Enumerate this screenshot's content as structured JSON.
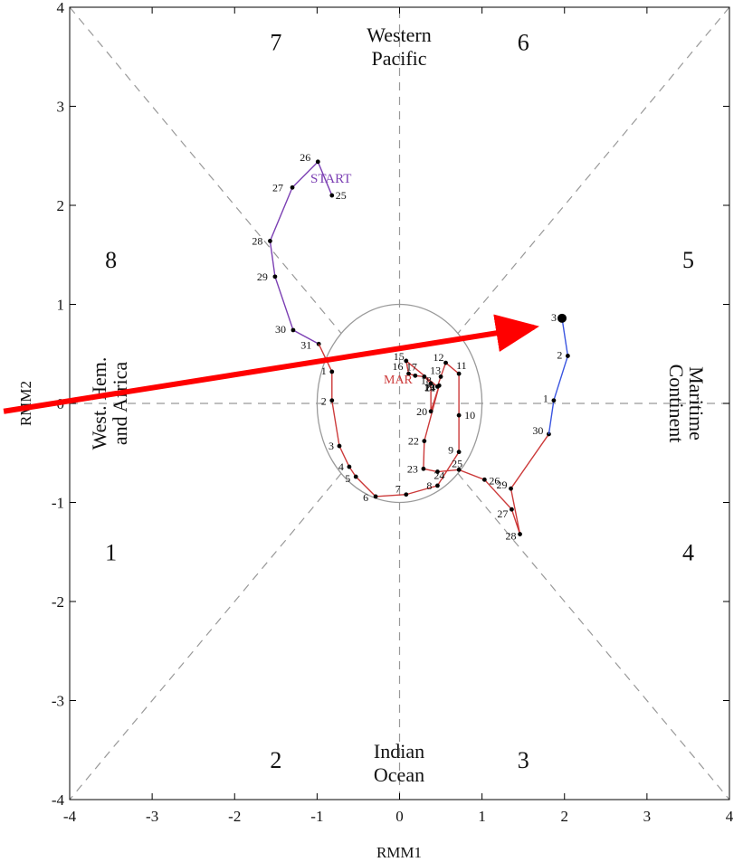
{
  "chart_data": {
    "type": "line",
    "xlabel": "RMM1",
    "ylabel": "RMM2",
    "xlim": [
      -4,
      4
    ],
    "ylim": [
      -4,
      4
    ],
    "x_ticks": [
      "-4",
      "-3",
      "-2",
      "-1",
      "0",
      "1",
      "2",
      "3",
      "4"
    ],
    "y_ticks": [
      "-4",
      "-3",
      "-2",
      "-1",
      "0",
      "1",
      "2",
      "3",
      "4"
    ],
    "phase_numbers": [
      {
        "text": "1",
        "x": -3.5,
        "y": -1.5
      },
      {
        "text": "2",
        "x": -1.5,
        "y": -3.6
      },
      {
        "text": "3",
        "x": 1.5,
        "y": -3.6
      },
      {
        "text": "4",
        "x": 3.5,
        "y": -1.5
      },
      {
        "text": "5",
        "x": 3.5,
        "y": 1.45
      },
      {
        "text": "6",
        "x": 1.5,
        "y": 3.65
      },
      {
        "text": "7",
        "x": -1.5,
        "y": 3.65
      },
      {
        "text": "8",
        "x": -3.5,
        "y": 1.45
      }
    ],
    "regions": {
      "top": [
        "Western",
        "Pacific"
      ],
      "bottom": [
        "Indian",
        "Ocean"
      ],
      "left": [
        "West. Hem.",
        "and Africa"
      ],
      "right": [
        "Maritime",
        "Continent"
      ]
    },
    "start_label": "START",
    "overlap_label": "MAR",
    "unit_circle_radius": 1,
    "colors": {
      "purple": "#7b3fb3",
      "red": "#cc3a3a",
      "blue": "#3a55e0",
      "arrow": "#ff0000",
      "grid": "#999999"
    },
    "series": [
      {
        "color": "purple",
        "points": [
          {
            "label": "25",
            "x": -0.82,
            "y": 2.1
          },
          {
            "label": "26",
            "x": -0.99,
            "y": 2.44
          },
          {
            "label": "27",
            "x": -1.3,
            "y": 2.18
          },
          {
            "label": "28",
            "x": -1.57,
            "y": 1.64
          },
          {
            "label": "29",
            "x": -1.51,
            "y": 1.28
          },
          {
            "label": "30",
            "x": -1.29,
            "y": 0.74
          },
          {
            "label": "31",
            "x": -0.98,
            "y": 0.6
          }
        ]
      },
      {
        "color": "red",
        "points": [
          {
            "label": "31",
            "x": -0.98,
            "y": 0.6
          },
          {
            "label": "1",
            "x": -0.82,
            "y": 0.32
          },
          {
            "label": "2",
            "x": -0.82,
            "y": 0.03
          },
          {
            "label": "3",
            "x": -0.73,
            "y": -0.43
          },
          {
            "label": "4",
            "x": -0.61,
            "y": -0.64
          },
          {
            "label": "5",
            "x": -0.53,
            "y": -0.74
          },
          {
            "label": "6",
            "x": -0.29,
            "y": -0.94
          },
          {
            "label": "7",
            "x": 0.08,
            "y": -0.92
          },
          {
            "label": "8",
            "x": 0.46,
            "y": -0.83
          },
          {
            "label": "9",
            "x": 0.72,
            "y": -0.49
          },
          {
            "label": "10",
            "x": 0.72,
            "y": -0.12
          },
          {
            "label": "11",
            "x": 0.72,
            "y": 0.3
          },
          {
            "label": "12",
            "x": 0.56,
            "y": 0.41
          },
          {
            "label": "13",
            "x": 0.5,
            "y": 0.27
          },
          {
            "label": "14",
            "x": 0.46,
            "y": 0.17
          },
          {
            "label": "15",
            "x": 0.08,
            "y": 0.43
          },
          {
            "label": "16",
            "x": 0.11,
            "y": 0.3
          },
          {
            "label": "17",
            "x": 0.19,
            "y": 0.28
          },
          {
            "label": "18",
            "x": 0.3,
            "y": 0.27
          },
          {
            "label": "19",
            "x": 0.38,
            "y": 0.2
          },
          {
            "label": "20",
            "x": 0.38,
            "y": -0.08
          },
          {
            "label": "21",
            "x": 0.48,
            "y": 0.18
          },
          {
            "label": "22",
            "x": 0.3,
            "y": -0.38
          },
          {
            "label": "23",
            "x": 0.29,
            "y": -0.66
          },
          {
            "label": "24",
            "x": 0.46,
            "y": -0.69
          },
          {
            "label": "25",
            "x": 0.72,
            "y": -0.67
          },
          {
            "label": "26",
            "x": 1.03,
            "y": -0.77
          },
          {
            "label": "27",
            "x": 1.36,
            "y": -1.07
          },
          {
            "label": "28",
            "x": 1.46,
            "y": -1.32
          },
          {
            "label": "29",
            "x": 1.35,
            "y": -0.86
          },
          {
            "label": "30",
            "x": 1.81,
            "y": -0.31
          }
        ]
      },
      {
        "color": "blue",
        "points": [
          {
            "label": "30",
            "x": 1.81,
            "y": -0.31
          },
          {
            "label": "1",
            "x": 1.87,
            "y": 0.03
          },
          {
            "label": "2",
            "x": 2.04,
            "y": 0.48
          },
          {
            "label": "3",
            "x": 1.97,
            "y": 0.86
          }
        ]
      }
    ],
    "arrow": {
      "x1": -4.8,
      "y1": -0.08,
      "x2": 1.63,
      "y2": 0.77
    }
  }
}
